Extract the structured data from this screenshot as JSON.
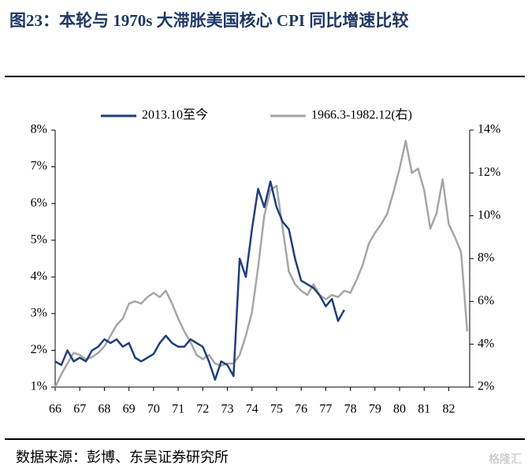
{
  "title": "图23：本轮与 1970s 大滞胀美国核心 CPI 同比增速比较",
  "source": "数据来源：彭博、东吴证券研究所",
  "watermark": "格隆汇",
  "chart_data": {
    "type": "line",
    "x": [
      66,
      66.25,
      66.5,
      66.75,
      67,
      67.25,
      67.5,
      67.75,
      68,
      68.25,
      68.5,
      68.75,
      69,
      69.25,
      69.5,
      69.75,
      70,
      70.25,
      70.5,
      70.75,
      71,
      71.25,
      71.5,
      71.75,
      72,
      72.25,
      72.5,
      72.75,
      73,
      73.25,
      73.5,
      73.75,
      74,
      74.25,
      74.5,
      74.75,
      75,
      75.25,
      75.5,
      75.75,
      76,
      76.25,
      76.5,
      76.75,
      77,
      77.25,
      77.5,
      77.75,
      78,
      78.25,
      78.5,
      78.75,
      79,
      79.25,
      79.5,
      79.75,
      80,
      80.25,
      80.5,
      80.75,
      81,
      81.25,
      81.5,
      81.75,
      82,
      82.25,
      82.5,
      82.75
    ],
    "series": [
      {
        "name": "2013.10至今",
        "color": "#1f3f7a",
        "axis": "y",
        "values": [
          1.7,
          1.6,
          2.0,
          1.7,
          1.8,
          1.7,
          2.0,
          2.1,
          2.3,
          2.2,
          2.3,
          2.1,
          2.2,
          1.8,
          1.7,
          1.8,
          1.9,
          2.2,
          2.4,
          2.2,
          2.1,
          2.1,
          2.3,
          2.2,
          2.1,
          1.7,
          1.2,
          1.7,
          1.6,
          1.3,
          4.5,
          4.0,
          5.3,
          6.4,
          5.9,
          6.6,
          5.9,
          5.5,
          5.3,
          4.5,
          3.9,
          3.8,
          3.7,
          3.5,
          3.2,
          3.4,
          2.8,
          3.1,
          null,
          null,
          null,
          null,
          null,
          null,
          null,
          null,
          null,
          null,
          null,
          null,
          null,
          null,
          null,
          null,
          null,
          null,
          null,
          null
        ]
      },
      {
        "name": "1966.3-1982.12(右)",
        "color": "#a6a6a6",
        "axis": "y2",
        "values": [
          2.0,
          2.6,
          3.1,
          3.6,
          3.5,
          3.3,
          3.4,
          3.6,
          3.9,
          4.4,
          4.9,
          5.2,
          5.9,
          6.0,
          5.9,
          6.2,
          6.4,
          6.2,
          6.5,
          5.9,
          5.2,
          4.6,
          4.1,
          3.5,
          3.3,
          3.5,
          3.1,
          3.0,
          3.1,
          3.1,
          3.5,
          4.4,
          5.5,
          7.6,
          10.0,
          11.2,
          11.4,
          9.4,
          7.4,
          6.8,
          6.5,
          6.3,
          6.8,
          6.3,
          6.1,
          6.3,
          6.2,
          6.5,
          6.4,
          7.0,
          7.7,
          8.7,
          9.2,
          9.6,
          10.1,
          11.1,
          12.2,
          13.5,
          12.0,
          12.2,
          11.2,
          9.4,
          10.1,
          11.7,
          9.6,
          9.0,
          8.3,
          4.6
        ]
      }
    ],
    "xlim": [
      66,
      82.85
    ],
    "xticks": [
      66,
      67,
      68,
      69,
      70,
      71,
      72,
      73,
      74,
      75,
      76,
      77,
      78,
      79,
      80,
      81,
      82
    ],
    "ylim": [
      1,
      8
    ],
    "yticks": [
      {
        "value": 1,
        "label": "1%"
      },
      {
        "value": 2,
        "label": "2%"
      },
      {
        "value": 3,
        "label": "3%"
      },
      {
        "value": 4,
        "label": "4%"
      },
      {
        "value": 5,
        "label": "5%"
      },
      {
        "value": 6,
        "label": "6%"
      },
      {
        "value": 7,
        "label": "7%"
      },
      {
        "value": 8,
        "label": "8%"
      }
    ],
    "y2lim": [
      2,
      14
    ],
    "y2ticks": [
      {
        "value": 2,
        "label": "2%"
      },
      {
        "value": 4,
        "label": "4%"
      },
      {
        "value": 6,
        "label": "6%"
      },
      {
        "value": 8,
        "label": "8%"
      },
      {
        "value": 10,
        "label": "10%"
      },
      {
        "value": 12,
        "label": "12%"
      },
      {
        "value": 14,
        "label": "14%"
      }
    ],
    "legend": "top"
  }
}
